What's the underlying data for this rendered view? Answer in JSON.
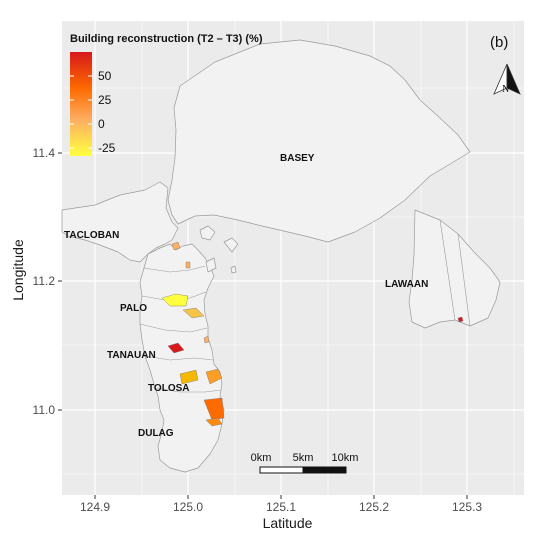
{
  "panel_label": "(b)",
  "legend": {
    "title": "Building reconstruction (T2 – T3) (%)",
    "ticks": [
      "50",
      "25",
      "0",
      "-25"
    ],
    "colors": [
      "#d7191c",
      "#fd6a00",
      "#fdae61",
      "#ffff40"
    ]
  },
  "axes": {
    "xlabel": "Latitude",
    "ylabel": "Longitude",
    "xticks": [
      "124.9",
      "125.0",
      "125.1",
      "125.2",
      "125.3"
    ],
    "yticks": [
      "11.4",
      "11.2",
      "11.0"
    ]
  },
  "north_arrow": {
    "label": "N",
    "icon": "north-arrow-icon"
  },
  "scale_bar": {
    "labels": [
      "0km",
      "5km",
      "10km"
    ]
  },
  "places": [
    "BASEY",
    "TACLOBAN",
    "LAWAAN",
    "PALO",
    "TANAUAN",
    "TOLOSA",
    "DULAG"
  ],
  "colors": {
    "panel_bg": "#ebebeb",
    "grid": "#ffffff",
    "land": "#f2f2f2",
    "land_stroke": "#9a9a9a"
  }
}
